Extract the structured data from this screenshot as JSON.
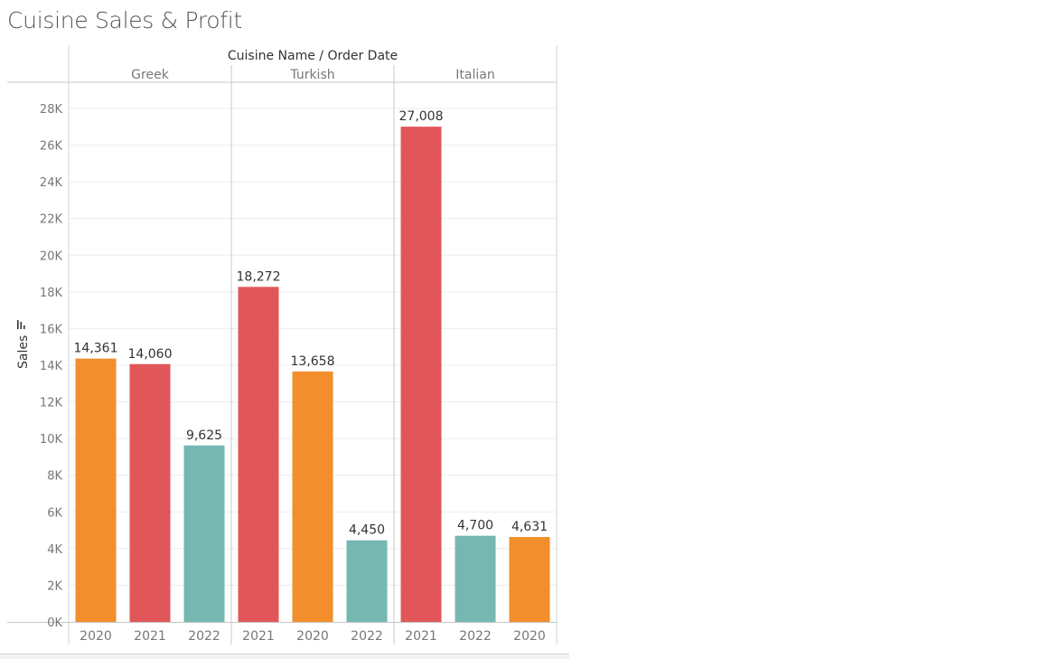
{
  "page": {
    "title": "Cuisine Sales & Profit"
  },
  "colors": {
    "orange": "#f28e2b",
    "red": "#e15759",
    "teal": "#76b7b2"
  },
  "chart_data": {
    "type": "bar",
    "header_title": "Cuisine Name  /  Order Date",
    "ylabel": "Sales",
    "ylim": [
      0,
      28000
    ],
    "y_ticks": [
      0,
      2000,
      4000,
      6000,
      8000,
      10000,
      12000,
      14000,
      16000,
      18000,
      20000,
      22000,
      24000,
      26000,
      28000
    ],
    "y_tick_labels": [
      "0K",
      "2K",
      "4K",
      "6K",
      "8K",
      "10K",
      "12K",
      "14K",
      "16K",
      "18K",
      "20K",
      "22K",
      "24K",
      "26K",
      "28K"
    ],
    "grid": true,
    "groups": [
      {
        "name": "Greek",
        "bars": [
          {
            "year": "2020",
            "value": 14361,
            "label": "14,361",
            "color": "#f28e2b"
          },
          {
            "year": "2021",
            "value": 14060,
            "label": "14,060",
            "color": "#e15759"
          },
          {
            "year": "2022",
            "value": 9625,
            "label": "9,625",
            "color": "#76b7b2"
          }
        ]
      },
      {
        "name": "Turkish",
        "bars": [
          {
            "year": "2021",
            "value": 18272,
            "label": "18,272",
            "color": "#e15759"
          },
          {
            "year": "2020",
            "value": 13658,
            "label": "13,658",
            "color": "#f28e2b"
          },
          {
            "year": "2022",
            "value": 4450,
            "label": "4,450",
            "color": "#76b7b2"
          }
        ]
      },
      {
        "name": "Italian",
        "bars": [
          {
            "year": "2021",
            "value": 27008,
            "label": "27,008",
            "color": "#e15759"
          },
          {
            "year": "2022",
            "value": 4700,
            "label": "4,700",
            "color": "#76b7b2"
          },
          {
            "year": "2020",
            "value": 4631,
            "label": "4,631",
            "color": "#f28e2b"
          }
        ]
      }
    ]
  }
}
